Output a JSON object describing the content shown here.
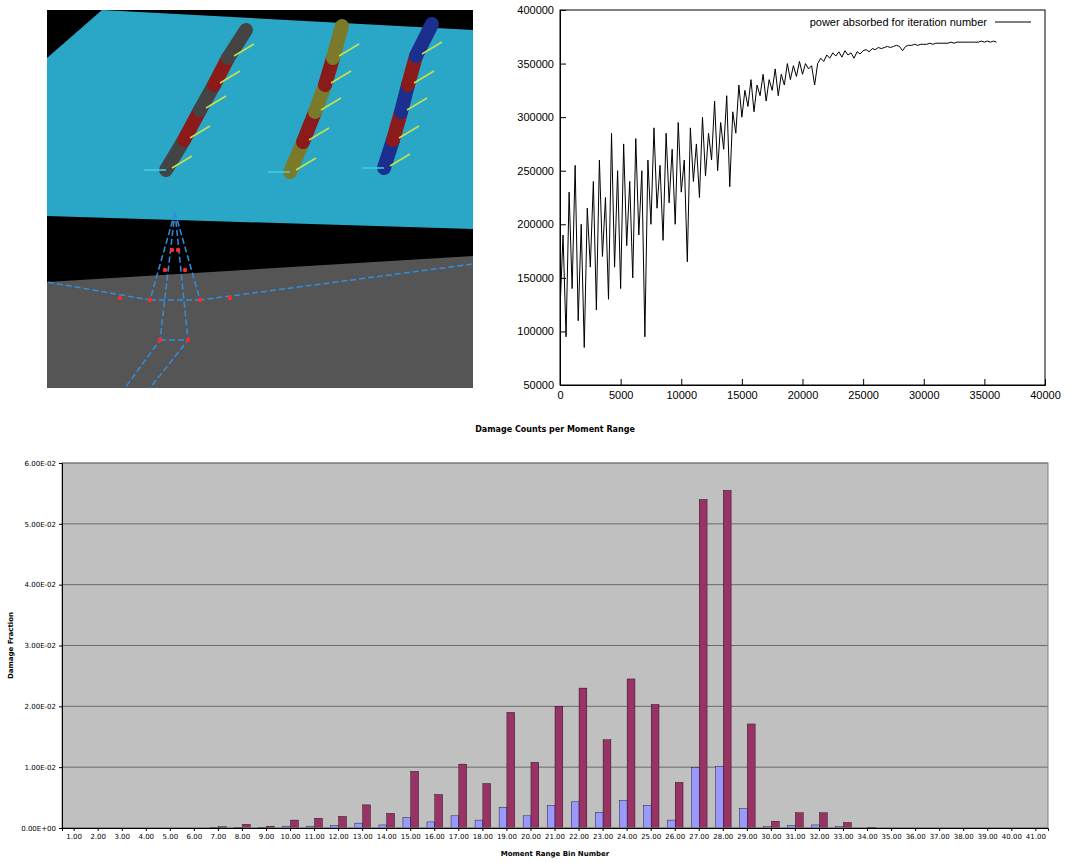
{
  "chart_data": [
    {
      "type": "line",
      "x": [
        0,
        250,
        500,
        750,
        1000,
        1250,
        1500,
        1750,
        2000,
        2250,
        2500,
        2750,
        3000,
        3250,
        3500,
        3750,
        4000,
        4250,
        4500,
        4750,
        5000,
        5250,
        5500,
        5750,
        6000,
        6250,
        6500,
        6750,
        7000,
        7250,
        7500,
        7750,
        8000,
        8250,
        8500,
        8750,
        9000,
        9250,
        9500,
        9750,
        10000,
        10250,
        10500,
        10750,
        11000,
        11250,
        11500,
        11750,
        12000,
        12250,
        12500,
        12750,
        13000,
        13250,
        13500,
        13750,
        14000,
        14250,
        14500,
        14750,
        15000,
        15250,
        15500,
        15750,
        16000,
        16250,
        16500,
        16750,
        17000,
        17250,
        17500,
        17750,
        18000,
        18250,
        18500,
        18750,
        19000,
        19250,
        19500,
        19750,
        20000,
        20250,
        20500,
        20750,
        21000,
        21250,
        21500,
        21750,
        22000,
        22250,
        22500,
        22750,
        23000,
        23250,
        23500,
        23750,
        24000,
        24250,
        24500,
        24750,
        25000,
        25250,
        25500,
        25750,
        26000,
        26250,
        26500,
        26750,
        27000,
        27250,
        27500,
        27750,
        28000,
        28250,
        28500,
        28750,
        29000,
        29250,
        29500,
        29750,
        30000,
        30250,
        30500,
        30750,
        31000,
        31250,
        31500,
        31750,
        32000,
        32250,
        32500,
        32750,
        33000,
        33250,
        33500,
        33750,
        34000,
        34250,
        34500,
        34750,
        35000,
        35250,
        35500,
        35750,
        36000
      ],
      "series": [
        {
          "name": "power absorbed for iteration number",
          "color": "#000000",
          "values": [
            120000,
            190000,
            95000,
            230000,
            140000,
            255000,
            110000,
            200000,
            85000,
            215000,
            160000,
            240000,
            120000,
            260000,
            170000,
            225000,
            130000,
            285000,
            160000,
            250000,
            140000,
            275000,
            180000,
            240000,
            150000,
            280000,
            190000,
            250000,
            95000,
            260000,
            200000,
            290000,
            215000,
            255000,
            185000,
            285000,
            220000,
            270000,
            200000,
            295000,
            230000,
            260000,
            165000,
            290000,
            240000,
            275000,
            225000,
            300000,
            245000,
            285000,
            260000,
            315000,
            250000,
            295000,
            270000,
            320000,
            235000,
            305000,
            285000,
            330000,
            300000,
            325000,
            310000,
            335000,
            305000,
            330000,
            320000,
            340000,
            315000,
            335000,
            325000,
            345000,
            320000,
            340000,
            330000,
            350000,
            335000,
            348000,
            338000,
            352000,
            340000,
            350000,
            345000,
            348000,
            330000,
            350000,
            355000,
            352000,
            358000,
            355000,
            360000,
            357000,
            361000,
            356000,
            362000,
            358000,
            360000,
            355000,
            361000,
            359000,
            362000,
            363000,
            361000,
            364000,
            363000,
            365000,
            364000,
            365000,
            366000,
            365000,
            366000,
            367000,
            366000,
            362000,
            366000,
            367000,
            367000,
            368000,
            367000,
            368000,
            368000,
            368000,
            369000,
            368000,
            369000,
            369000,
            369000,
            369000,
            369000,
            370000,
            369000,
            370000,
            370000,
            370000,
            370000,
            370000,
            370000,
            370000,
            370000,
            371000,
            370000,
            371000,
            370000,
            371000,
            370000
          ]
        }
      ],
      "xlim": [
        0,
        40000
      ],
      "xticks": [
        0,
        5000,
        10000,
        15000,
        20000,
        25000,
        30000,
        35000,
        40000
      ],
      "ylim": [
        50000,
        400000
      ],
      "yticks": [
        50000,
        100000,
        150000,
        200000,
        250000,
        300000,
        350000,
        400000
      ],
      "legend": "upper right",
      "grid": false
    },
    {
      "type": "bar",
      "title": "Damage Counts per Moment Range",
      "x_label": "Moment Range Bin Number",
      "y_label": "Damage Fraction",
      "categories": [
        "1.00",
        "2.00",
        "3.00",
        "4.00",
        "5.00",
        "6.00",
        "7.00",
        "8.00",
        "9.00",
        "10.00",
        "11.00",
        "12.00",
        "13.00",
        "14.00",
        "15.00",
        "16.00",
        "17.00",
        "18.00",
        "19.00",
        "20.00",
        "21.00",
        "22.00",
        "23.00",
        "24.00",
        "25.00",
        "26.00",
        "27.00",
        "28.00",
        "29.00",
        "30.00",
        "31.00",
        "32.00",
        "33.00",
        "34.00",
        "35.00",
        "36.00",
        "37.00",
        "38.00",
        "39.00",
        "40.00",
        "41.00"
      ],
      "series": [
        {
          "color": "#9999ff",
          "values": [
            0,
            0,
            0,
            0,
            0,
            0,
            0.0001,
            0.0001,
            0.0001,
            0.0003,
            0.0003,
            0.0004,
            0.0008,
            0.0005,
            0.0017,
            0.001,
            0.002,
            0.0013,
            0.0034,
            0.002,
            0.0037,
            0.0043,
            0.0026,
            0.0045,
            0.0037,
            0.0013,
            0.0099,
            0.0101,
            0.0032,
            0.0002,
            0.0004,
            0.0005,
            0.0002,
            0,
            0,
            0,
            0,
            0,
            0,
            0,
            0
          ]
        },
        {
          "color": "#993366",
          "values": [
            0,
            0,
            0,
            0,
            0,
            0,
            0.0002,
            0.0006,
            0.0003,
            0.0013,
            0.0016,
            0.0019,
            0.0038,
            0.0024,
            0.0093,
            0.0055,
            0.0105,
            0.0073,
            0.019,
            0.0108,
            0.02,
            0.023,
            0.0145,
            0.0245,
            0.0203,
            0.0075,
            0.054,
            0.0555,
            0.0171,
            0.0011,
            0.0025,
            0.0025,
            0.0009,
            0.0001,
            0,
            0,
            0,
            0,
            0,
            0,
            0
          ]
        }
      ],
      "ylim": [
        0,
        0.06
      ],
      "yticks": [
        {
          "value": 0,
          "label": "0.00E+00"
        },
        {
          "value": 0.01,
          "label": "1.00E-02"
        },
        {
          "value": 0.02,
          "label": "2.00E-02"
        },
        {
          "value": 0.03,
          "label": "3.00E-02"
        },
        {
          "value": 0.04,
          "label": "4.00E-02"
        },
        {
          "value": 0.05,
          "label": "5.00E-02"
        },
        {
          "value": 0.06,
          "label": "6.00E-02"
        }
      ],
      "grid": true
    }
  ]
}
